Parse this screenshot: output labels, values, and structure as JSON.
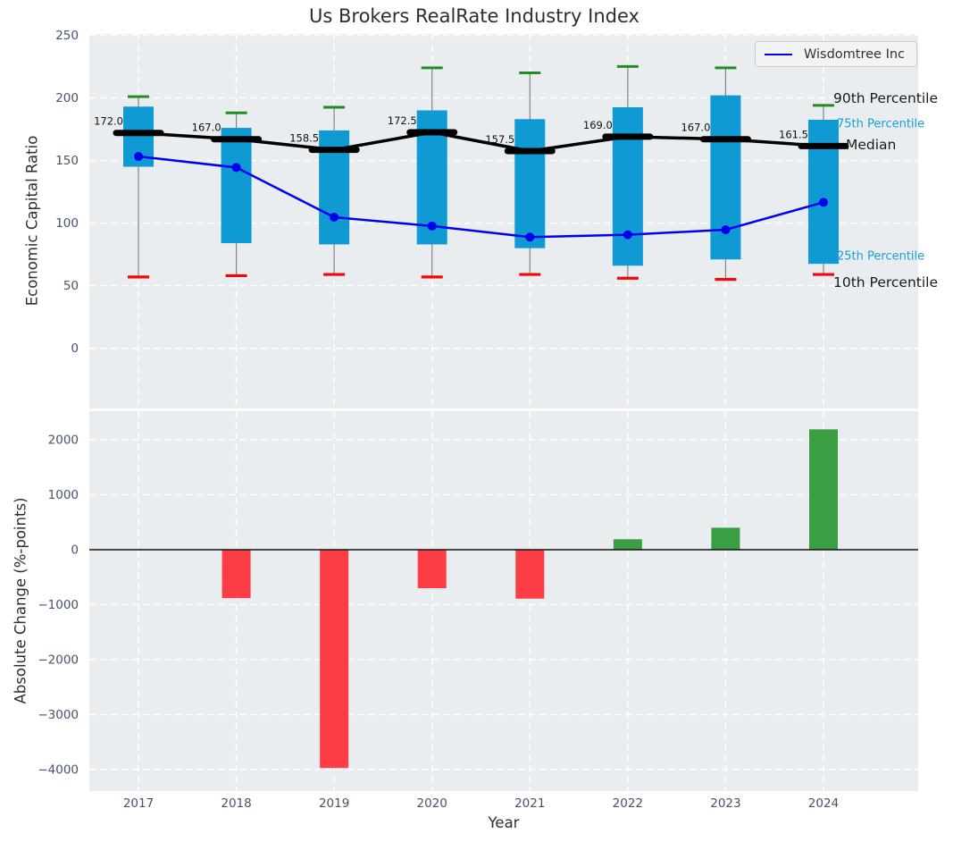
{
  "title": "Us Brokers RealRate Industry Index",
  "legend": {
    "label": "Wisdomtree Inc"
  },
  "colors": {
    "axes_background": "#e9edef",
    "grid": "#ffffff",
    "box_fill": "#0f9ad3",
    "whisker": "#828282",
    "p90_cap": "#238b23",
    "p10_cap": "#f20707",
    "median": "#000000",
    "company_line": "#0000ee",
    "bar_positive": "#3b9e43",
    "bar_negative": "#fc3d45",
    "tick_label": "#44546b",
    "text": "#2b2b2b",
    "percentile_accent": "#17a0d4"
  },
  "chart_data": [
    {
      "type": "box-percentile-timeseries",
      "title": "Us Brokers RealRate Industry Index",
      "ylabel": "Economic Capital Ratio",
      "categories": [
        2017,
        2018,
        2019,
        2020,
        2021,
        2022,
        2023,
        2024
      ],
      "yticks": [
        0,
        50,
        100,
        150,
        200,
        250
      ],
      "ylim": [
        -48,
        251
      ],
      "grid": true,
      "legend_position": "upper right",
      "series": [
        {
          "name": "90th Percentile",
          "values": [
            201,
            188,
            192.5,
            224,
            220,
            225,
            224,
            194
          ]
        },
        {
          "name": "75th Percentile",
          "values": [
            193,
            176,
            174,
            190,
            183,
            192.5,
            202,
            182.5
          ]
        },
        {
          "name": "Median",
          "values": [
            172.0,
            167.0,
            158.5,
            172.5,
            157.5,
            169.0,
            167.0,
            161.5
          ]
        },
        {
          "name": "25th Percentile",
          "values": [
            145,
            84,
            83,
            83,
            80,
            66,
            71,
            67.5
          ]
        },
        {
          "name": "10th Percentile",
          "values": [
            57,
            58,
            59,
            57,
            59,
            56,
            55,
            59
          ]
        },
        {
          "name": "Wisdomtree Inc",
          "values": [
            153.2,
            144.4,
            104.7,
            97.7,
            88.8,
            90.7,
            94.7,
            116.6
          ]
        }
      ],
      "median_labels": [
        "172.0",
        "167.0",
        "158.5",
        "172.5",
        "157.5",
        "169.0",
        "167.0",
        "161.5"
      ],
      "annotations": {
        "p90": "90th Percentile",
        "p75": "75th Percentile",
        "median": "Median",
        "p25": "25th Percentile",
        "p10": "10th Percentile"
      }
    },
    {
      "type": "bar",
      "ylabel": "Absolute Change (%-points)",
      "xlabel": "Year",
      "categories": [
        2017,
        2018,
        2019,
        2020,
        2021,
        2022,
        2023,
        2024
      ],
      "values": [
        null,
        -880,
        -3970,
        -700,
        -890,
        190,
        400,
        2190
      ],
      "yticks": [
        2000,
        1000,
        0,
        -1000,
        -2000,
        -3000,
        -4000
      ],
      "ylim": [
        -4390,
        2520
      ],
      "grid": true
    }
  ]
}
